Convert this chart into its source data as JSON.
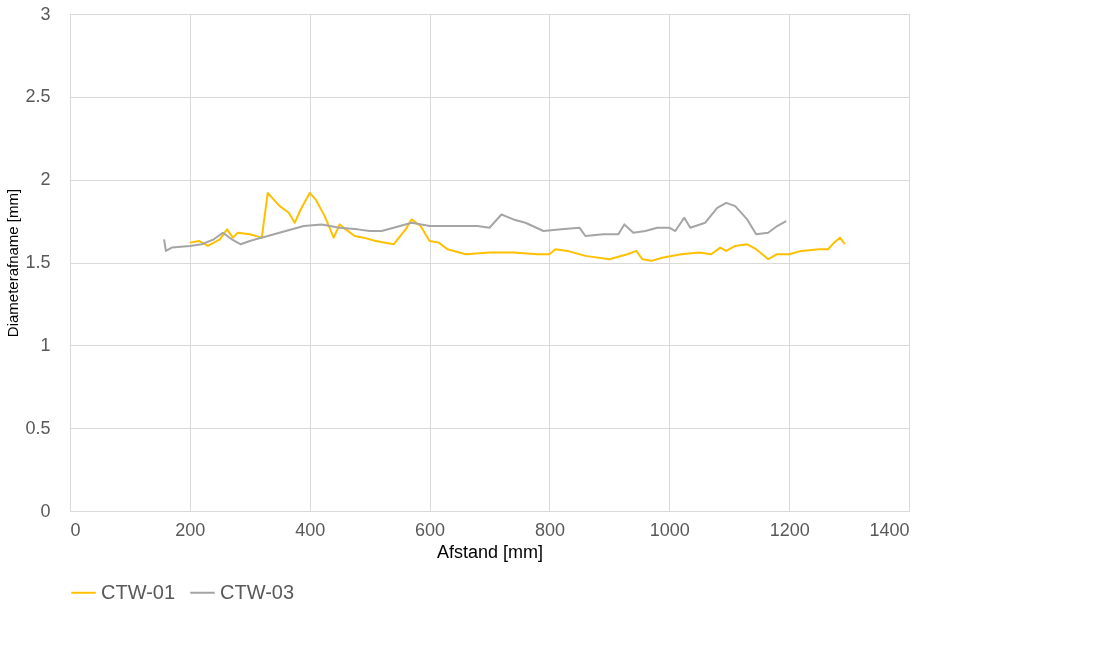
{
  "chart_data": {
    "type": "line",
    "xlabel": "Afstand [mm]",
    "ylabel": "Diameterafname [mm]",
    "xlim": [
      0,
      1400
    ],
    "xticks": [
      0,
      200,
      400,
      600,
      800,
      1000,
      1200,
      1400
    ],
    "ylim": [
      0,
      3
    ],
    "yticks": [
      0,
      0.5,
      1,
      1.5,
      2,
      2.5,
      3
    ],
    "grid": true,
    "legend": "bottom",
    "marker": "none",
    "line_style": "solid",
    "series": [
      {
        "name": "CTW-01",
        "color": "#ffc000",
        "x": [
          200,
          215,
          230,
          250,
          262,
          272,
          280,
          300,
          320,
          330,
          340,
          350,
          365,
          375,
          385,
          400,
          410,
          425,
          440,
          450,
          460,
          475,
          490,
          510,
          540,
          560,
          570,
          585,
          600,
          615,
          630,
          660,
          700,
          740,
          780,
          800,
          810,
          830,
          860,
          900,
          930,
          945,
          955,
          970,
          990,
          1020,
          1050,
          1070,
          1085,
          1095,
          1110,
          1130,
          1145,
          1165,
          1180,
          1200,
          1220,
          1250,
          1265,
          1275,
          1285,
          1293
        ],
        "values": [
          1.62,
          1.63,
          1.6,
          1.64,
          1.7,
          1.65,
          1.68,
          1.67,
          1.65,
          1.92,
          1.88,
          1.84,
          1.8,
          1.74,
          1.82,
          1.92,
          1.88,
          1.78,
          1.65,
          1.73,
          1.7,
          1.66,
          1.65,
          1.63,
          1.61,
          1.7,
          1.76,
          1.72,
          1.63,
          1.62,
          1.58,
          1.55,
          1.56,
          1.56,
          1.55,
          1.55,
          1.58,
          1.57,
          1.54,
          1.52,
          1.55,
          1.57,
          1.52,
          1.51,
          1.53,
          1.55,
          1.56,
          1.55,
          1.59,
          1.57,
          1.6,
          1.61,
          1.58,
          1.52,
          1.55,
          1.55,
          1.57,
          1.58,
          1.58,
          1.62,
          1.65,
          1.61
        ]
      },
      {
        "name": "CTW-03",
        "color": "#a5a5a5",
        "x": [
          157,
          160,
          170,
          200,
          220,
          240,
          255,
          270,
          285,
          300,
          330,
          360,
          390,
          420,
          450,
          480,
          500,
          520,
          540,
          570,
          600,
          640,
          680,
          700,
          720,
          740,
          760,
          790,
          820,
          850,
          860,
          890,
          915,
          925,
          940,
          960,
          980,
          1000,
          1010,
          1025,
          1035,
          1060,
          1080,
          1095,
          1110,
          1130,
          1145,
          1165,
          1180,
          1195
        ],
        "values": [
          1.64,
          1.57,
          1.59,
          1.6,
          1.61,
          1.64,
          1.68,
          1.64,
          1.61,
          1.63,
          1.66,
          1.69,
          1.72,
          1.73,
          1.71,
          1.7,
          1.69,
          1.69,
          1.71,
          1.74,
          1.72,
          1.72,
          1.72,
          1.71,
          1.79,
          1.76,
          1.74,
          1.69,
          1.7,
          1.71,
          1.66,
          1.67,
          1.67,
          1.73,
          1.68,
          1.69,
          1.71,
          1.71,
          1.69,
          1.77,
          1.71,
          1.74,
          1.83,
          1.86,
          1.84,
          1.76,
          1.67,
          1.68,
          1.72,
          1.75
        ]
      }
    ]
  }
}
